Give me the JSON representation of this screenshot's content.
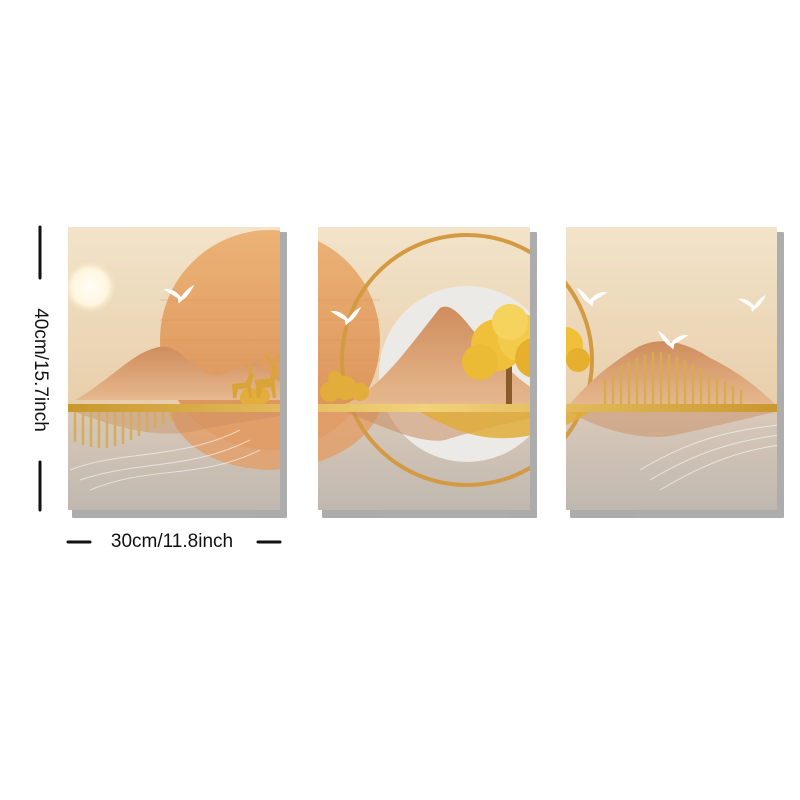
{
  "product": {
    "panel_count": 3,
    "height_label": "40cm/15.7inch",
    "width_label": "30cm/11.8inch"
  },
  "colors": {
    "background": "#ffffff",
    "sky_top": "#f1e3c9",
    "sky_bottom": "#e6cba3",
    "sun_disc": "#e6a365",
    "mountain": "#c98a5c",
    "gold": "#d4a23a",
    "water": "#c8bdb2",
    "circle_fill": "#eceae6",
    "tree_gold": "#f0c03a",
    "bird": "#ffffff"
  },
  "icons": [
    "bird-icon",
    "deer-icon",
    "tree-icon",
    "sun-icon"
  ]
}
